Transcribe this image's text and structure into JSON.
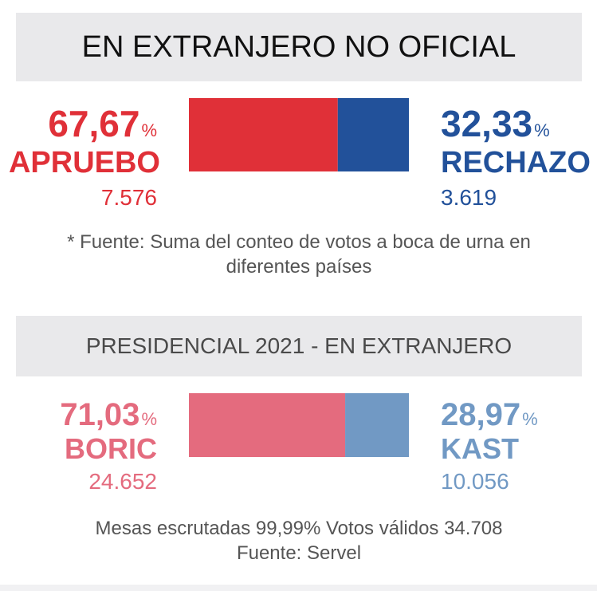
{
  "section1": {
    "title": "EN EXTRANJERO NO OFICIAL",
    "left": {
      "percent": "67,67",
      "name": "APRUEBO",
      "votes": "7.576"
    },
    "right": {
      "percent": "32,33",
      "name": "RECHAZO",
      "votes": "3.619"
    },
    "percent_symbol": "%",
    "note": "* Fuente: Suma del conteo de votos a boca de urna en diferentes países"
  },
  "section2": {
    "title": "PRESIDENCIAL 2021 - EN EXTRANJERO",
    "left": {
      "percent": "71,03",
      "name": "BORIC",
      "votes": "24.652"
    },
    "right": {
      "percent": "28,97",
      "name": "KAST",
      "votes": "10.056"
    },
    "percent_symbol": "%",
    "note_line1": "Mesas escrutadas 99,99% Votos válidos 34.708",
    "note_line2": "Fuente: Servel"
  },
  "colors": {
    "apruebo": "#e03038",
    "rechazo": "#22519a",
    "boric": "#e46b7e",
    "kast": "#7199c4"
  },
  "chart_data": [
    {
      "type": "bar",
      "stacked": true,
      "title": "EN EXTRANJERO NO OFICIAL",
      "categories": [
        "APRUEBO",
        "RECHAZO"
      ],
      "values": [
        67.67,
        32.33
      ],
      "votes": [
        7576,
        3619
      ]
    },
    {
      "type": "bar",
      "stacked": true,
      "title": "PRESIDENCIAL 2021 - EN EXTRANJERO",
      "categories": [
        "BORIC",
        "KAST"
      ],
      "values": [
        71.03,
        28.97
      ],
      "votes": [
        24652,
        10056
      ]
    }
  ]
}
